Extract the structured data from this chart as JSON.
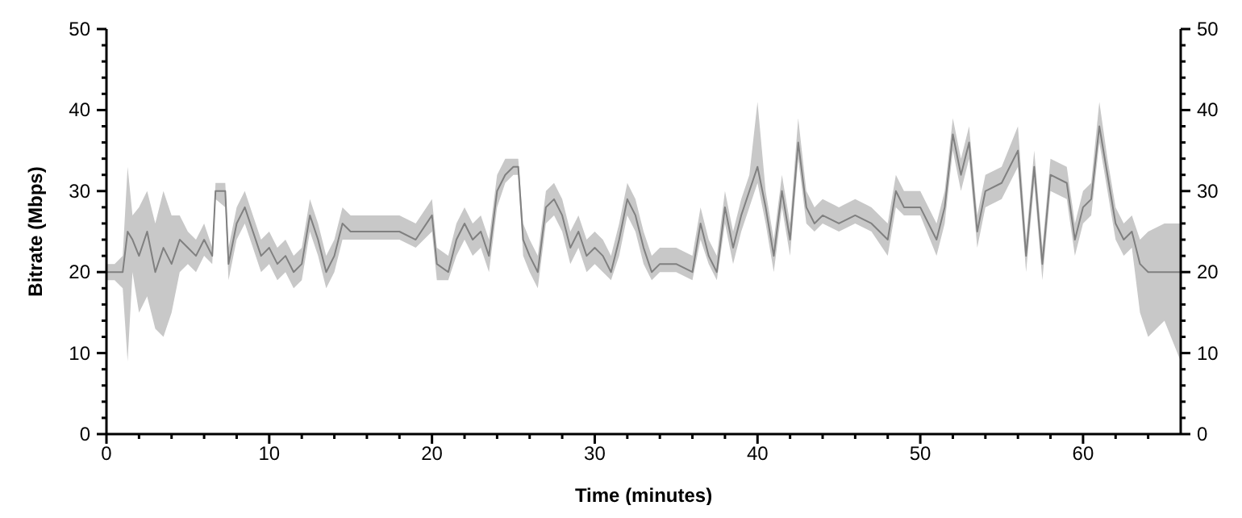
{
  "chart_data": {
    "type": "line",
    "xlabel": "Time (minutes)",
    "ylabel": "Bitrate (Mbps)",
    "x": [
      0,
      0.5,
      1,
      1.3,
      1.6,
      2,
      2.5,
      3,
      3.5,
      4,
      4.5,
      5,
      5.5,
      6,
      6.5,
      6.7,
      7.3,
      7.5,
      8,
      8.5,
      9,
      9.5,
      10,
      10.5,
      11,
      11.5,
      12,
      12.5,
      13,
      13.5,
      14,
      14.5,
      15,
      16,
      17,
      18,
      19,
      20,
      20.3,
      21,
      21.5,
      22,
      22.5,
      23,
      23.5,
      24,
      24.5,
      25,
      25.3,
      25.6,
      26,
      26.5,
      27,
      27.5,
      28,
      28.5,
      29,
      29.5,
      30,
      30.5,
      31,
      31.5,
      32,
      32.5,
      33,
      33.5,
      34,
      35,
      36,
      36.5,
      37,
      37.5,
      38,
      38.5,
      39,
      39.5,
      40,
      40.5,
      41,
      41.5,
      42,
      42.5,
      43,
      43.5,
      44,
      45,
      46,
      47,
      48,
      48.5,
      49,
      50,
      51,
      51.5,
      52,
      52.5,
      53,
      53.5,
      54,
      55,
      56,
      56.5,
      57,
      57.5,
      58,
      59,
      59.5,
      60,
      60.5,
      61,
      61.5,
      62,
      62.5,
      63,
      63.5,
      64,
      65,
      66
    ],
    "series": [
      {
        "color": "#808080",
        "values": [
          20,
          20,
          20,
          25,
          24,
          22,
          25,
          20,
          23,
          21,
          24,
          23,
          22,
          24,
          22,
          30,
          30,
          21,
          26,
          28,
          25,
          22,
          23,
          21,
          22,
          20,
          21,
          27,
          24,
          20,
          22,
          26,
          25,
          25,
          25,
          25,
          24,
          27,
          21,
          20,
          24,
          26,
          24,
          25,
          22,
          30,
          32,
          33,
          33,
          24,
          22,
          20,
          28,
          29,
          27,
          23,
          25,
          22,
          23,
          22,
          20,
          24,
          29,
          27,
          23,
          20,
          21,
          21,
          20,
          26,
          22,
          20,
          28,
          23,
          27,
          30,
          33,
          28,
          22,
          30,
          24,
          36,
          28,
          26,
          27,
          26,
          27,
          26,
          24,
          30,
          28,
          28,
          24,
          28,
          37,
          32,
          36,
          25,
          30,
          31,
          35,
          22,
          33,
          21,
          32,
          31,
          24,
          28,
          29,
          38,
          32,
          26,
          24,
          25,
          21,
          20,
          20,
          20
        ],
        "lower": [
          19,
          19,
          18,
          9,
          20,
          15,
          17,
          13,
          12,
          15,
          20,
          21,
          20,
          22,
          21,
          29,
          28,
          19,
          24,
          26,
          23,
          20,
          21,
          19,
          20,
          18,
          19,
          25,
          22,
          18,
          20,
          24,
          24,
          24,
          24,
          24,
          23,
          25,
          19,
          19,
          22,
          24,
          22,
          23,
          20,
          28,
          31,
          32,
          32,
          22,
          20,
          18,
          26,
          27,
          25,
          21,
          23,
          20,
          21,
          20,
          19,
          22,
          27,
          25,
          21,
          19,
          20,
          20,
          19,
          24,
          21,
          19,
          26,
          21,
          25,
          28,
          31,
          26,
          20,
          28,
          22,
          34,
          26,
          25,
          26,
          25,
          26,
          25,
          22,
          28,
          27,
          27,
          22,
          26,
          35,
          30,
          34,
          23,
          28,
          29,
          33,
          20,
          31,
          19,
          30,
          29,
          22,
          26,
          27,
          36,
          30,
          24,
          22,
          23,
          15,
          12,
          14,
          9
        ],
        "upper": [
          21,
          21,
          22,
          33,
          27,
          28,
          30,
          26,
          30,
          27,
          27,
          25,
          24,
          26,
          23,
          31,
          31,
          23,
          28,
          30,
          27,
          24,
          25,
          23,
          24,
          22,
          23,
          29,
          26,
          22,
          24,
          28,
          27,
          27,
          27,
          27,
          26,
          29,
          23,
          22,
          26,
          28,
          26,
          27,
          24,
          32,
          34,
          34,
          34,
          26,
          24,
          22,
          30,
          31,
          29,
          25,
          27,
          24,
          25,
          24,
          22,
          26,
          31,
          29,
          25,
          22,
          23,
          23,
          22,
          28,
          24,
          22,
          30,
          25,
          29,
          32,
          41,
          30,
          24,
          32,
          26,
          39,
          30,
          28,
          29,
          28,
          29,
          28,
          26,
          32,
          30,
          30,
          26,
          30,
          39,
          34,
          38,
          27,
          32,
          33,
          38,
          24,
          35,
          23,
          34,
          33,
          26,
          30,
          31,
          41,
          34,
          28,
          26,
          27,
          24,
          25,
          26,
          26
        ]
      }
    ],
    "xlim": [
      0,
      66
    ],
    "xticks": [
      0,
      {
        "value": 2,
        "label": null
      },
      {
        "value": 4,
        "label": null
      },
      {
        "value": 6,
        "label": null
      },
      {
        "value": 8,
        "label": null
      },
      10,
      {
        "value": 12,
        "label": null
      },
      {
        "value": 14,
        "label": null
      },
      {
        "value": 16,
        "label": null
      },
      {
        "value": 18,
        "label": null
      },
      20,
      {
        "value": 22,
        "label": null
      },
      {
        "value": 24,
        "label": null
      },
      {
        "value": 26,
        "label": null
      },
      {
        "value": 28,
        "label": null
      },
      30,
      {
        "value": 32,
        "label": null
      },
      {
        "value": 34,
        "label": null
      },
      {
        "value": 36,
        "label": null
      },
      {
        "value": 38,
        "label": null
      },
      40,
      {
        "value": 42,
        "label": null
      },
      {
        "value": 44,
        "label": null
      },
      {
        "value": 46,
        "label": null
      },
      {
        "value": 48,
        "label": null
      },
      50,
      {
        "value": 52,
        "label": null
      },
      {
        "value": 54,
        "label": null
      },
      {
        "value": 56,
        "label": null
      },
      {
        "value": 58,
        "label": null
      },
      60,
      {
        "value": 62,
        "label": null
      },
      {
        "value": 64,
        "label": null
      }
    ],
    "ylim": [
      0,
      50
    ],
    "yticks": [
      0,
      {
        "value": 2,
        "label": null
      },
      {
        "value": 4,
        "label": null
      },
      {
        "value": 6,
        "label": null
      },
      {
        "value": 8,
        "label": null
      },
      10,
      {
        "value": 12,
        "label": null
      },
      {
        "value": 14,
        "label": null
      },
      {
        "value": 16,
        "label": null
      },
      {
        "value": 18,
        "label": null
      },
      20,
      {
        "value": 22,
        "label": null
      },
      {
        "value": 24,
        "label": null
      },
      {
        "value": 26,
        "label": null
      },
      {
        "value": 28,
        "label": null
      },
      30,
      {
        "value": 32,
        "label": null
      },
      {
        "value": 34,
        "label": null
      },
      {
        "value": 36,
        "label": null
      },
      {
        "value": 38,
        "label": null
      },
      40,
      {
        "value": 42,
        "label": null
      },
      {
        "value": 44,
        "label": null
      },
      {
        "value": 46,
        "label": null
      },
      {
        "value": 48,
        "label": null
      },
      50
    ],
    "y2lim": [
      0,
      50
    ],
    "y2ticks": [
      0,
      {
        "value": 2,
        "label": null
      },
      {
        "value": 4,
        "label": null
      },
      {
        "value": 6,
        "label": null
      },
      {
        "value": 8,
        "label": null
      },
      10,
      {
        "value": 12,
        "label": null
      },
      {
        "value": 14,
        "label": null
      },
      {
        "value": 16,
        "label": null
      },
      {
        "value": 18,
        "label": null
      },
      20,
      {
        "value": 22,
        "label": null
      },
      {
        "value": 24,
        "label": null
      },
      {
        "value": 26,
        "label": null
      },
      {
        "value": 28,
        "label": null
      },
      30,
      {
        "value": 32,
        "label": null
      },
      {
        "value": 34,
        "label": null
      },
      {
        "value": 36,
        "label": null
      },
      {
        "value": 38,
        "label": null
      },
      40,
      {
        "value": 42,
        "label": null
      },
      {
        "value": 44,
        "label": null
      },
      {
        "value": 46,
        "label": null
      },
      {
        "value": 48,
        "label": null
      },
      50
    ],
    "grid": false,
    "legend": false,
    "marker": "none",
    "line_style": "solid"
  }
}
